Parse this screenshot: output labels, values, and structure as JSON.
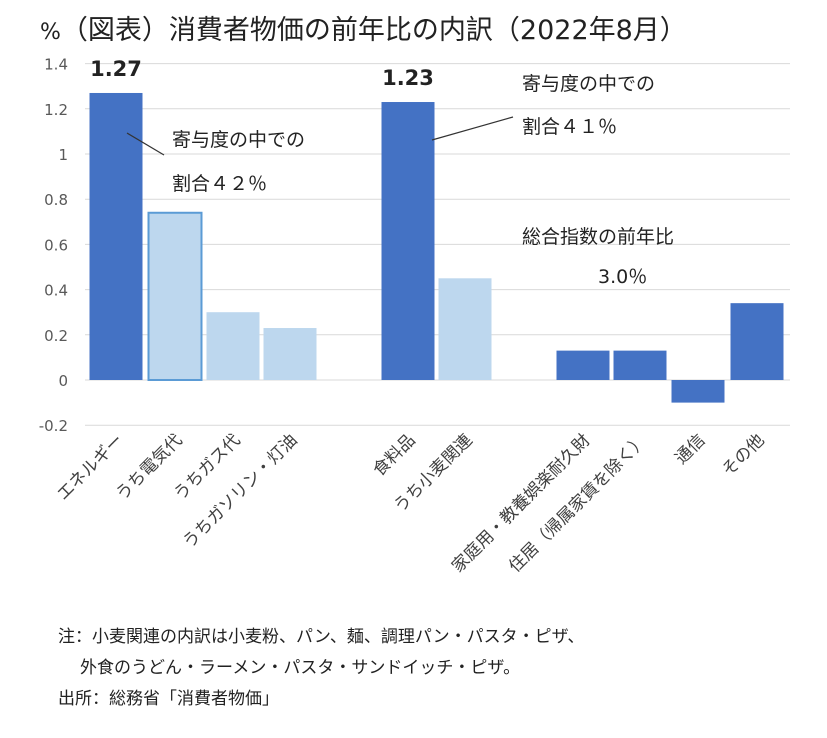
{
  "title": {
    "unit": "%",
    "text": "（図表）消費者物価の前年比の内訳（2022年8月）"
  },
  "chart_data": {
    "type": "bar",
    "title": "（図表）消費者物価の前年比の内訳（2022年8月）",
    "ylabel": "%",
    "ylim": [
      -0.2,
      1.4
    ],
    "yticks": [
      -0.2,
      0,
      0.2,
      0.4,
      0.6,
      0.8,
      1,
      1.2,
      1.4
    ],
    "ytick_labels": [
      "-0.2",
      "0",
      "0.2",
      "0.4",
      "0.6",
      "0.8",
      "1",
      "1.2",
      "1.4"
    ],
    "grid": true,
    "categories": [
      "エネルギー",
      "うち電気代",
      "うちガス代",
      "うちガソリン・灯油",
      "食料品",
      "うち小麦関連",
      "家庭用・教養娯楽耐久財",
      "住居（帰属家賃を除く）",
      "通信",
      "その他"
    ],
    "values": [
      1.27,
      0.74,
      0.3,
      0.23,
      1.23,
      0.45,
      0.13,
      0.13,
      -0.1,
      0.34
    ],
    "kinds": [
      "main",
      "sub",
      "sub",
      "sub",
      "main",
      "sub",
      "main",
      "main",
      "main",
      "main"
    ],
    "colors": {
      "main": "#4472C4",
      "sub": "#BDD7EE",
      "highlight_edge": "#5B9BD5",
      "grid": "#D9D9D9",
      "axis_text": "#595959"
    },
    "data_labels": [
      {
        "category_index": 0,
        "text": "1.27"
      },
      {
        "category_index": 4,
        "text": "1.23"
      }
    ],
    "annotations": [
      {
        "line1": "寄与度の中での",
        "line2": "割合４２％",
        "target_index": 0
      },
      {
        "line1": "寄与度の中での",
        "line2": "割合４１％",
        "target_index": 4
      },
      {
        "line1": "総合指数の前年比",
        "line2": "3.0％"
      }
    ]
  },
  "notes": {
    "line1": "注：小麦関連の内訳は小麦粉、パン、麺、調理パン・パスタ・ピザ、",
    "line2": "外食のうどん・ラーメン・パスタ・サンドイッチ・ピザ。",
    "source": "出所：総務省「消費者物価」"
  }
}
